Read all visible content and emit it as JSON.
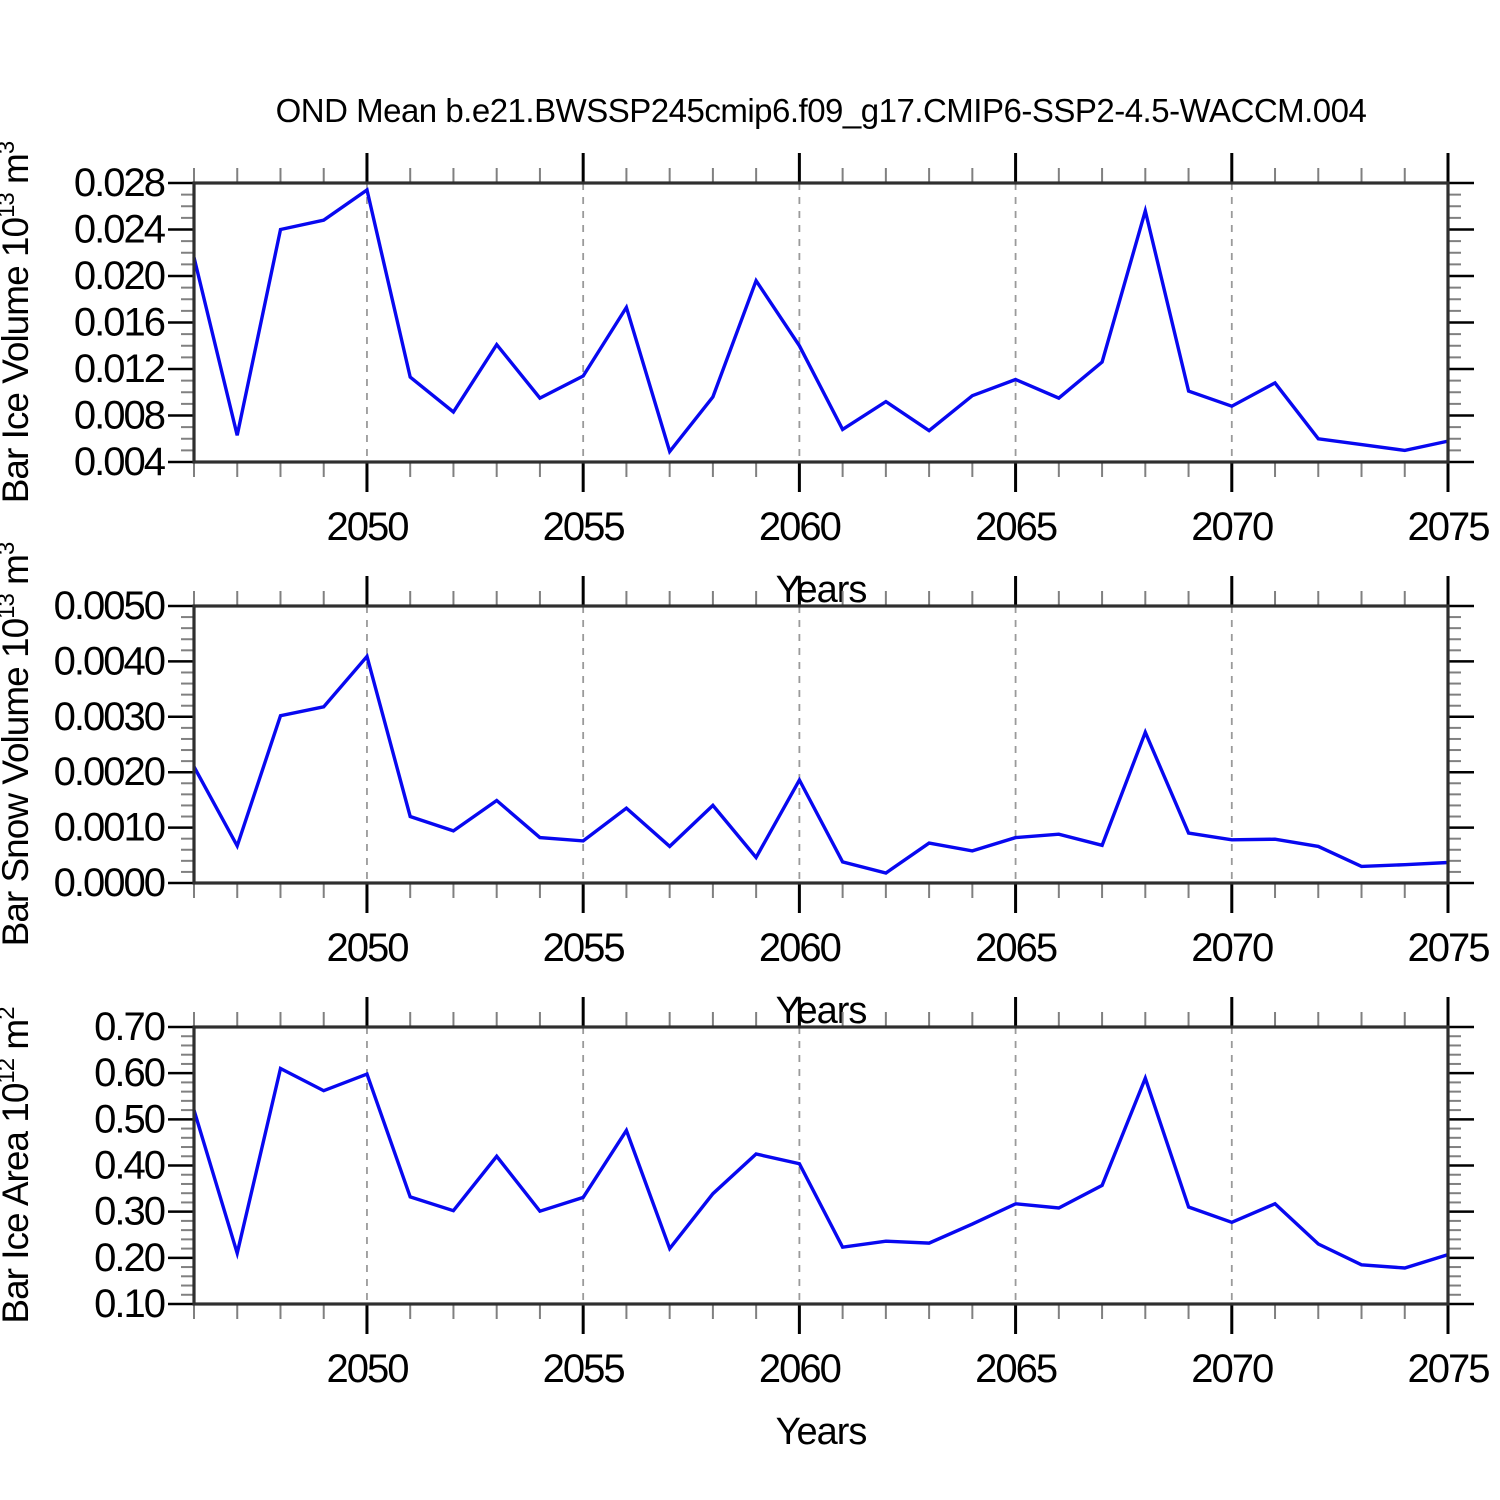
{
  "title": "OND Mean b.e21.BWSSP245cmip6.f09_g17.CMIP6-SSP2-4.5-WACCM.004",
  "xlabel": "Years",
  "colors": {
    "line": "#0808f0",
    "grid": "#9a9a9a",
    "frame": "#2f2f2f",
    "major_tick": "#000000",
    "minor_tick": "#808080",
    "text": "#000000"
  },
  "x_axis": {
    "start_year": 2046,
    "end_year": 2075,
    "years": [
      2046,
      2047,
      2048,
      2049,
      2050,
      2051,
      2052,
      2053,
      2054,
      2055,
      2056,
      2057,
      2058,
      2059,
      2060,
      2061,
      2062,
      2063,
      2064,
      2065,
      2066,
      2067,
      2068,
      2069,
      2070,
      2071,
      2072,
      2073,
      2074,
      2075
    ],
    "major_ticks": [
      2050,
      2055,
      2060,
      2065,
      2070,
      2075
    ],
    "major_tick_labels": [
      "2050",
      "2055",
      "2060",
      "2065",
      "2070",
      "2075"
    ],
    "gridline_years": [
      2050,
      2055,
      2060,
      2065,
      2070
    ]
  },
  "chart_data": [
    {
      "type": "line",
      "name": "bar-ice-volume",
      "ylabel": "Bar Ice Volume 10^13 m^3",
      "ylabel_parts": [
        [
          "Bar Ice Volume 10",
          false
        ],
        [
          "13",
          true
        ],
        [
          " m",
          false
        ],
        [
          "3",
          true
        ]
      ],
      "ylim": [
        0.004,
        0.028
      ],
      "y_major_step": 0.004,
      "y_minor_step": 0.001,
      "y_tick_labels": [
        "0.004",
        "0.008",
        "0.012",
        "0.016",
        "0.020",
        "0.024",
        "0.028"
      ],
      "values": [
        0.0216,
        0.0063,
        0.024,
        0.0248,
        0.0274,
        0.0113,
        0.0083,
        0.0141,
        0.0095,
        0.0114,
        0.0173,
        0.0049,
        0.0096,
        0.0196,
        0.014,
        0.0068,
        0.0092,
        0.0067,
        0.0097,
        0.0111,
        0.0095,
        0.0126,
        0.0256,
        0.0101,
        0.0088,
        0.0108,
        0.006,
        0.0055,
        0.005,
        0.0058
      ]
    },
    {
      "type": "line",
      "name": "bar-snow-volume",
      "ylabel": "Bar Snow Volume 10^13 m^3",
      "ylabel_parts": [
        [
          "Bar Snow Volume 10",
          false
        ],
        [
          "13",
          true
        ],
        [
          " m",
          false
        ],
        [
          "3",
          true
        ]
      ],
      "ylim": [
        0.0,
        0.005
      ],
      "y_major_step": 0.001,
      "y_minor_step": 0.0002,
      "y_tick_labels": [
        "0.0000",
        "0.0010",
        "0.0020",
        "0.0030",
        "0.0040",
        "0.0050"
      ],
      "values": [
        0.0021,
        0.00067,
        0.00302,
        0.00318,
        0.00409,
        0.0012,
        0.00094,
        0.00149,
        0.00082,
        0.00076,
        0.00135,
        0.00066,
        0.0014,
        0.00046,
        0.00186,
        0.00038,
        0.00018,
        0.00072,
        0.00058,
        0.00082,
        0.00088,
        0.00068,
        0.00272,
        0.0009,
        0.00078,
        0.00079,
        0.00066,
        0.0003,
        0.00033,
        0.00037
      ]
    },
    {
      "type": "line",
      "name": "bar-ice-area",
      "ylabel": "Bar Ice Area 10^12 m^2",
      "ylabel_parts": [
        [
          "Bar Ice Area 10",
          false
        ],
        [
          "12",
          true
        ],
        [
          " m",
          false
        ],
        [
          "2",
          true
        ]
      ],
      "ylim": [
        0.1,
        0.7
      ],
      "y_major_step": 0.1,
      "y_minor_step": 0.02,
      "y_tick_labels": [
        "0.10",
        "0.20",
        "0.30",
        "0.40",
        "0.50",
        "0.60",
        "0.70"
      ],
      "values": [
        0.52,
        0.21,
        0.61,
        0.562,
        0.598,
        0.332,
        0.302,
        0.42,
        0.301,
        0.331,
        0.476,
        0.22,
        0.339,
        0.425,
        0.404,
        0.223,
        0.236,
        0.232,
        0.273,
        0.317,
        0.308,
        0.357,
        0.589,
        0.31,
        0.277,
        0.317,
        0.23,
        0.185,
        0.178,
        0.207
      ]
    }
  ]
}
